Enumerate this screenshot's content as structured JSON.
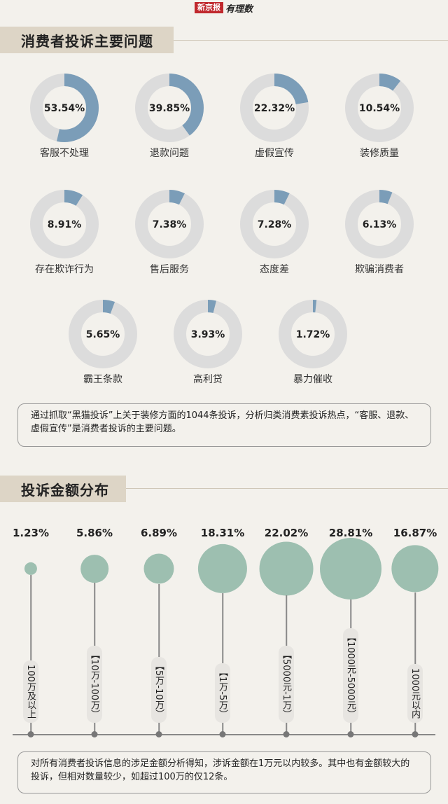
{
  "masthead": {
    "paper": "新京报",
    "brand": "有理数"
  },
  "section1": {
    "title": "消费者投诉主要问题"
  },
  "section2": {
    "title": "投诉金额分布"
  },
  "colors": {
    "donut_fill": "#7b9db8",
    "donut_track": "#dcdcdc",
    "bubble": "#9dbfb0",
    "band": "#ddd5c6"
  },
  "chart_data": [
    {
      "type": "pie",
      "title": "消费者投诉主要问题",
      "categories": [
        "客服不处理",
        "退款问题",
        "虚假宣传",
        "装修质量",
        "存在欺诈行为",
        "售后服务",
        "态度差",
        "欺骗消费者",
        "霸王条款",
        "高利贷",
        "暴力催收"
      ],
      "values": [
        53.54,
        39.85,
        22.32,
        10.54,
        8.91,
        7.38,
        7.28,
        6.13,
        5.65,
        3.93,
        1.72
      ],
      "labels": [
        "53.54%",
        "39.85%",
        "22.32%",
        "10.54%",
        "8.91%",
        "7.38%",
        "7.28%",
        "6.13%",
        "5.65%",
        "3.93%",
        "1.72%"
      ]
    },
    {
      "type": "scatter",
      "title": "投诉金额分布",
      "categories": [
        "100万及以上",
        "【10万-100万）",
        "【5万-10万）",
        "【1万-5万）",
        "【5000元-1万）",
        "【1000元-5000元）",
        "1000元以内"
      ],
      "values": [
        1.23,
        5.86,
        6.89,
        18.31,
        22.02,
        28.81,
        16.87
      ],
      "labels": [
        "1.23%",
        "5.86%",
        "6.89%",
        "18.31%",
        "22.02%",
        "28.81%",
        "16.87%"
      ]
    }
  ],
  "note1": "通过抓取“黑猫投诉”上关于装修方面的1044条投诉，分析归类消费素投诉热点，“客服、退款、虚假宣传”是消费者投诉的主要问题。",
  "note2": "对所有消费者投诉信息的涉足金额分析得知，涉诉金额在1万元以内较多。其中也有金额较大的投诉，但相对数量较少，如超过100万的仅12条。"
}
